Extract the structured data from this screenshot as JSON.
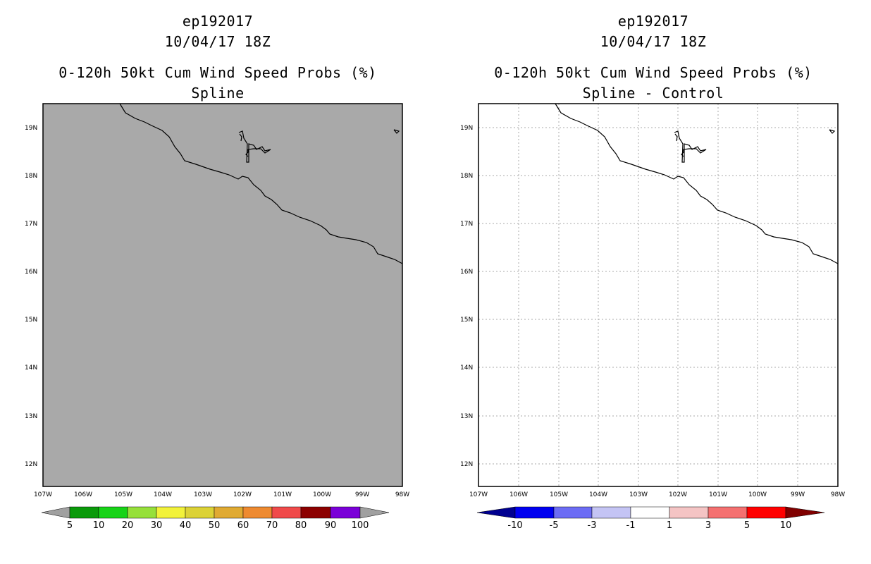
{
  "colors": {
    "land_gray": "#a9a9a9",
    "prob_scale": [
      "#a0a0a0",
      "#0a9a0a",
      "#17d317",
      "#96e03a",
      "#f2f23a",
      "#dcd236",
      "#e0aa32",
      "#ee8a30",
      "#f04a4a",
      "#8c0000",
      "#7a00d8",
      "#a0a0a0"
    ],
    "diff_scale": [
      "#000090",
      "#0000f0",
      "#6c6cf4",
      "#c4c4f4",
      "#ffffff",
      "#f4c4c4",
      "#f47070",
      "#ff0000",
      "#800000"
    ]
  },
  "left_panel": {
    "title_line1": "ep192017",
    "title_line2": "10/04/17 18Z",
    "title_line3": "0-120h 50kt Cum Wind Speed Probs (%)",
    "title_line4": "Spline",
    "colorbar_labels": [
      "5",
      "10",
      "20",
      "30",
      "40",
      "50",
      "60",
      "70",
      "80",
      "90",
      "100"
    ]
  },
  "right_panel": {
    "title_line1": "ep192017",
    "title_line2": "10/04/17 18Z",
    "title_line3": "0-120h 50kt Cum Wind Speed Probs (%)",
    "title_line4": "Spline - Control",
    "colorbar_labels": [
      "-10",
      "-5",
      "-3",
      "-1",
      "1",
      "3",
      "5",
      "10"
    ]
  },
  "lat_labels": [
    "19N",
    "18N",
    "17N",
    "16N",
    "15N",
    "14N",
    "13N",
    "12N"
  ],
  "lon_labels": [
    "107W",
    "106W",
    "105W",
    "104W",
    "103W",
    "102W",
    "101W",
    "100W",
    "99W",
    "98W"
  ]
}
